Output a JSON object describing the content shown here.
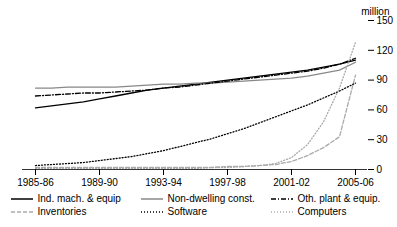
{
  "chart_data": {
    "type": "line",
    "title": "million",
    "categories": [
      "1985-86",
      null,
      null,
      null,
      "1989-90",
      null,
      null,
      null,
      "1993-94",
      null,
      null,
      null,
      "1997-98",
      null,
      null,
      null,
      "2001-02",
      null,
      null,
      null,
      "2005-06"
    ],
    "series": [
      {
        "name": "Ind. mach. & equip",
        "color": "#000000",
        "line_style": "solid",
        "values": [
          62,
          64,
          66,
          68,
          71,
          74,
          77,
          80,
          82,
          84,
          86,
          88,
          90,
          92,
          94,
          96,
          98,
          100,
          103,
          106,
          110
        ]
      },
      {
        "name": "Non-dwelling const.",
        "color": "#888888",
        "line_style": "solid",
        "values": [
          82,
          82,
          83,
          83,
          83,
          83,
          84,
          85,
          86,
          86,
          87,
          87,
          88,
          89,
          90,
          91,
          92,
          94,
          97,
          100,
          108
        ]
      },
      {
        "name": "Oth. plant & equip.",
        "color": "#000000",
        "line_style": "dashdot",
        "values": [
          74,
          75,
          76,
          77,
          77,
          78,
          79,
          80,
          82,
          83,
          85,
          87,
          89,
          91,
          93,
          95,
          97,
          99,
          102,
          106,
          112
        ]
      },
      {
        "name": "Inventories",
        "color": "#aaaaaa",
        "line_style": "dashed",
        "values": [
          2,
          2,
          2,
          2,
          2,
          2,
          2,
          2,
          2,
          2,
          2,
          2,
          3,
          3,
          4,
          5,
          8,
          14,
          22,
          33,
          95
        ]
      },
      {
        "name": "Software",
        "color": "#000000",
        "line_style": "dotted",
        "values": [
          4,
          5,
          6,
          7,
          9,
          11,
          13,
          16,
          19,
          23,
          27,
          31,
          36,
          41,
          47,
          53,
          59,
          65,
          72,
          79,
          87
        ]
      },
      {
        "name": "Computers",
        "color": "#aaaaaa",
        "line_style": "dotted",
        "values": [
          1,
          1,
          1,
          1,
          1,
          1,
          1,
          1,
          1,
          1,
          1,
          2,
          2,
          3,
          4,
          6,
          12,
          25,
          48,
          82,
          128
        ]
      }
    ],
    "ylim": [
      0,
      150
    ],
    "yticks": [
      0,
      30,
      60,
      90,
      120,
      150
    ],
    "grid": false,
    "legend": "bottom"
  }
}
